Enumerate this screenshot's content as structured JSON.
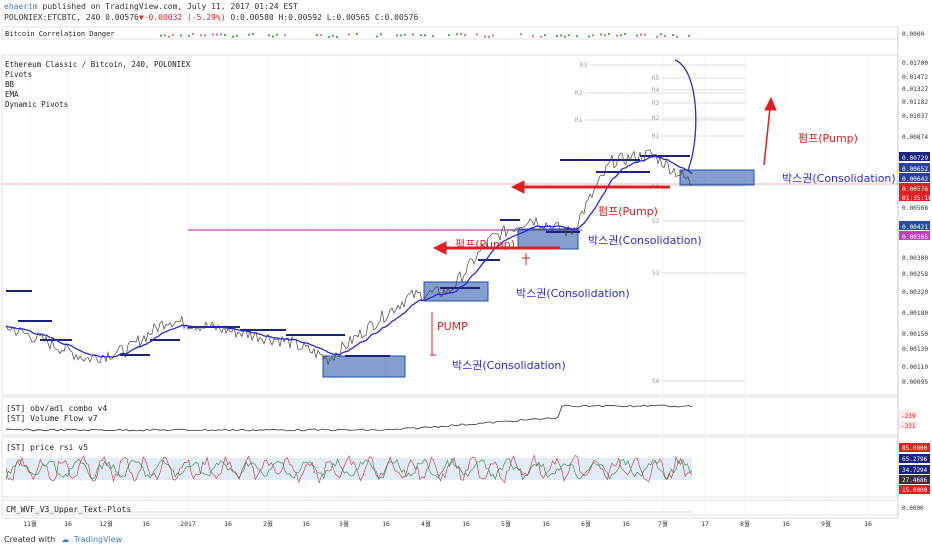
{
  "header": {
    "author": "ehaerim",
    "published": " published on TradingView.com, July 11, 2017 01:24 EST",
    "quote_prefix": "POLONIEX:ETCBTC, 240 0.00576",
    "quote_change": "▼-0.00032 (-5.29%)",
    "quote_ohlc": " O:0.00580 H:0.00592 L:0.00565 C:0.00576"
  },
  "top_indicator": {
    "label": "Bitcoin Correlation Danger"
  },
  "main_legend": [
    "Ethereum Classic / Bitcoin, 240, POLONIEX",
    "Pivots",
    "BB",
    "EMA",
    "Dynamic Pivots"
  ],
  "pivot_labels": [
    "R3",
    "R5",
    "R4",
    "R3",
    "R2",
    "R1",
    "R2",
    "R1",
    "S1",
    "S2",
    "S3",
    "S4"
  ],
  "annotations": {
    "pump_kr_1": "펌프(Pump)",
    "pump_kr_2": "펌프(Pump)",
    "pump_kr_3": "펌프(Pump)",
    "pump_en": "PUMP",
    "consol_1": "박스권(Consolidation)",
    "consol_2": "박스권(Consolidation)",
    "consol_3": "박스권(Consolidation)",
    "consol_4": "박스권(Consolidation)"
  },
  "price_axis": [
    "0.01700",
    "0.01472",
    "0.01327",
    "0.01182",
    "0.01037",
    "0.00874",
    "0.00729",
    "0.00652",
    "0.00642",
    "0.00576",
    "01:35:18",
    "0.00568",
    "0.00421",
    "0.00385",
    "0.00300",
    "0.00258",
    "0.00220",
    "0.00180",
    "0.00150",
    "0.00130",
    "0.00110",
    "0.00095"
  ],
  "top_axis": [
    "0.0000"
  ],
  "panels": {
    "obv": {
      "labels": [
        "[ST] obv/adl combo v4",
        "[ST] Volume Flow v7"
      ],
      "axis": [
        "-239",
        "-331"
      ]
    },
    "rsi": {
      "labels": [
        "[ST] price rsi v5"
      ],
      "axis": [
        "85.0000",
        "65.2796",
        "34.7294",
        "27.4686",
        "15.0000"
      ]
    },
    "wvf": {
      "labels": [
        "CM_WVF_V3_Upper_Text-Plots"
      ],
      "axis": [
        "0.0000"
      ]
    }
  },
  "time_axis": [
    "11월",
    "16",
    "12월",
    "16",
    "2017",
    "16",
    "2월",
    "16",
    "3월",
    "16",
    "4월",
    "16",
    "5월",
    "16",
    "6월",
    "16",
    "7월",
    "17",
    "8월",
    "16",
    "9월",
    "16",
    "10"
  ],
  "footer": {
    "created": "Created with",
    "brand": "TradingView"
  },
  "chart_data": {
    "type": "line",
    "title": "Ethereum Classic / Bitcoin, 240, POLONIEX",
    "x": [
      "11월",
      "16",
      "12월",
      "16",
      "2017",
      "16",
      "2월",
      "16",
      "3월",
      "16",
      "4월",
      "16",
      "5월",
      "16",
      "6월",
      "16",
      "7월",
      "17"
    ],
    "series": [
      {
        "name": "Ethereum Classic / Bitcoin",
        "values": [
          0.0016,
          0.0014,
          0.0012,
          0.0013,
          0.0017,
          0.0016,
          0.0015,
          0.0014,
          0.0012,
          0.0016,
          0.0021,
          0.0022,
          0.0035,
          0.0042,
          0.0037,
          0.007,
          0.0075,
          0.00576
        ]
      }
    ],
    "ylim": [
      0.00095,
      0.017
    ],
    "log_scale": true,
    "colors": {
      "price_line": "#2b2bd0",
      "consolidation_box": "#1f4fa8",
      "arrow": "#e02020",
      "horizontal_line": "#c040c0",
      "last_price": "#e02020"
    }
  }
}
